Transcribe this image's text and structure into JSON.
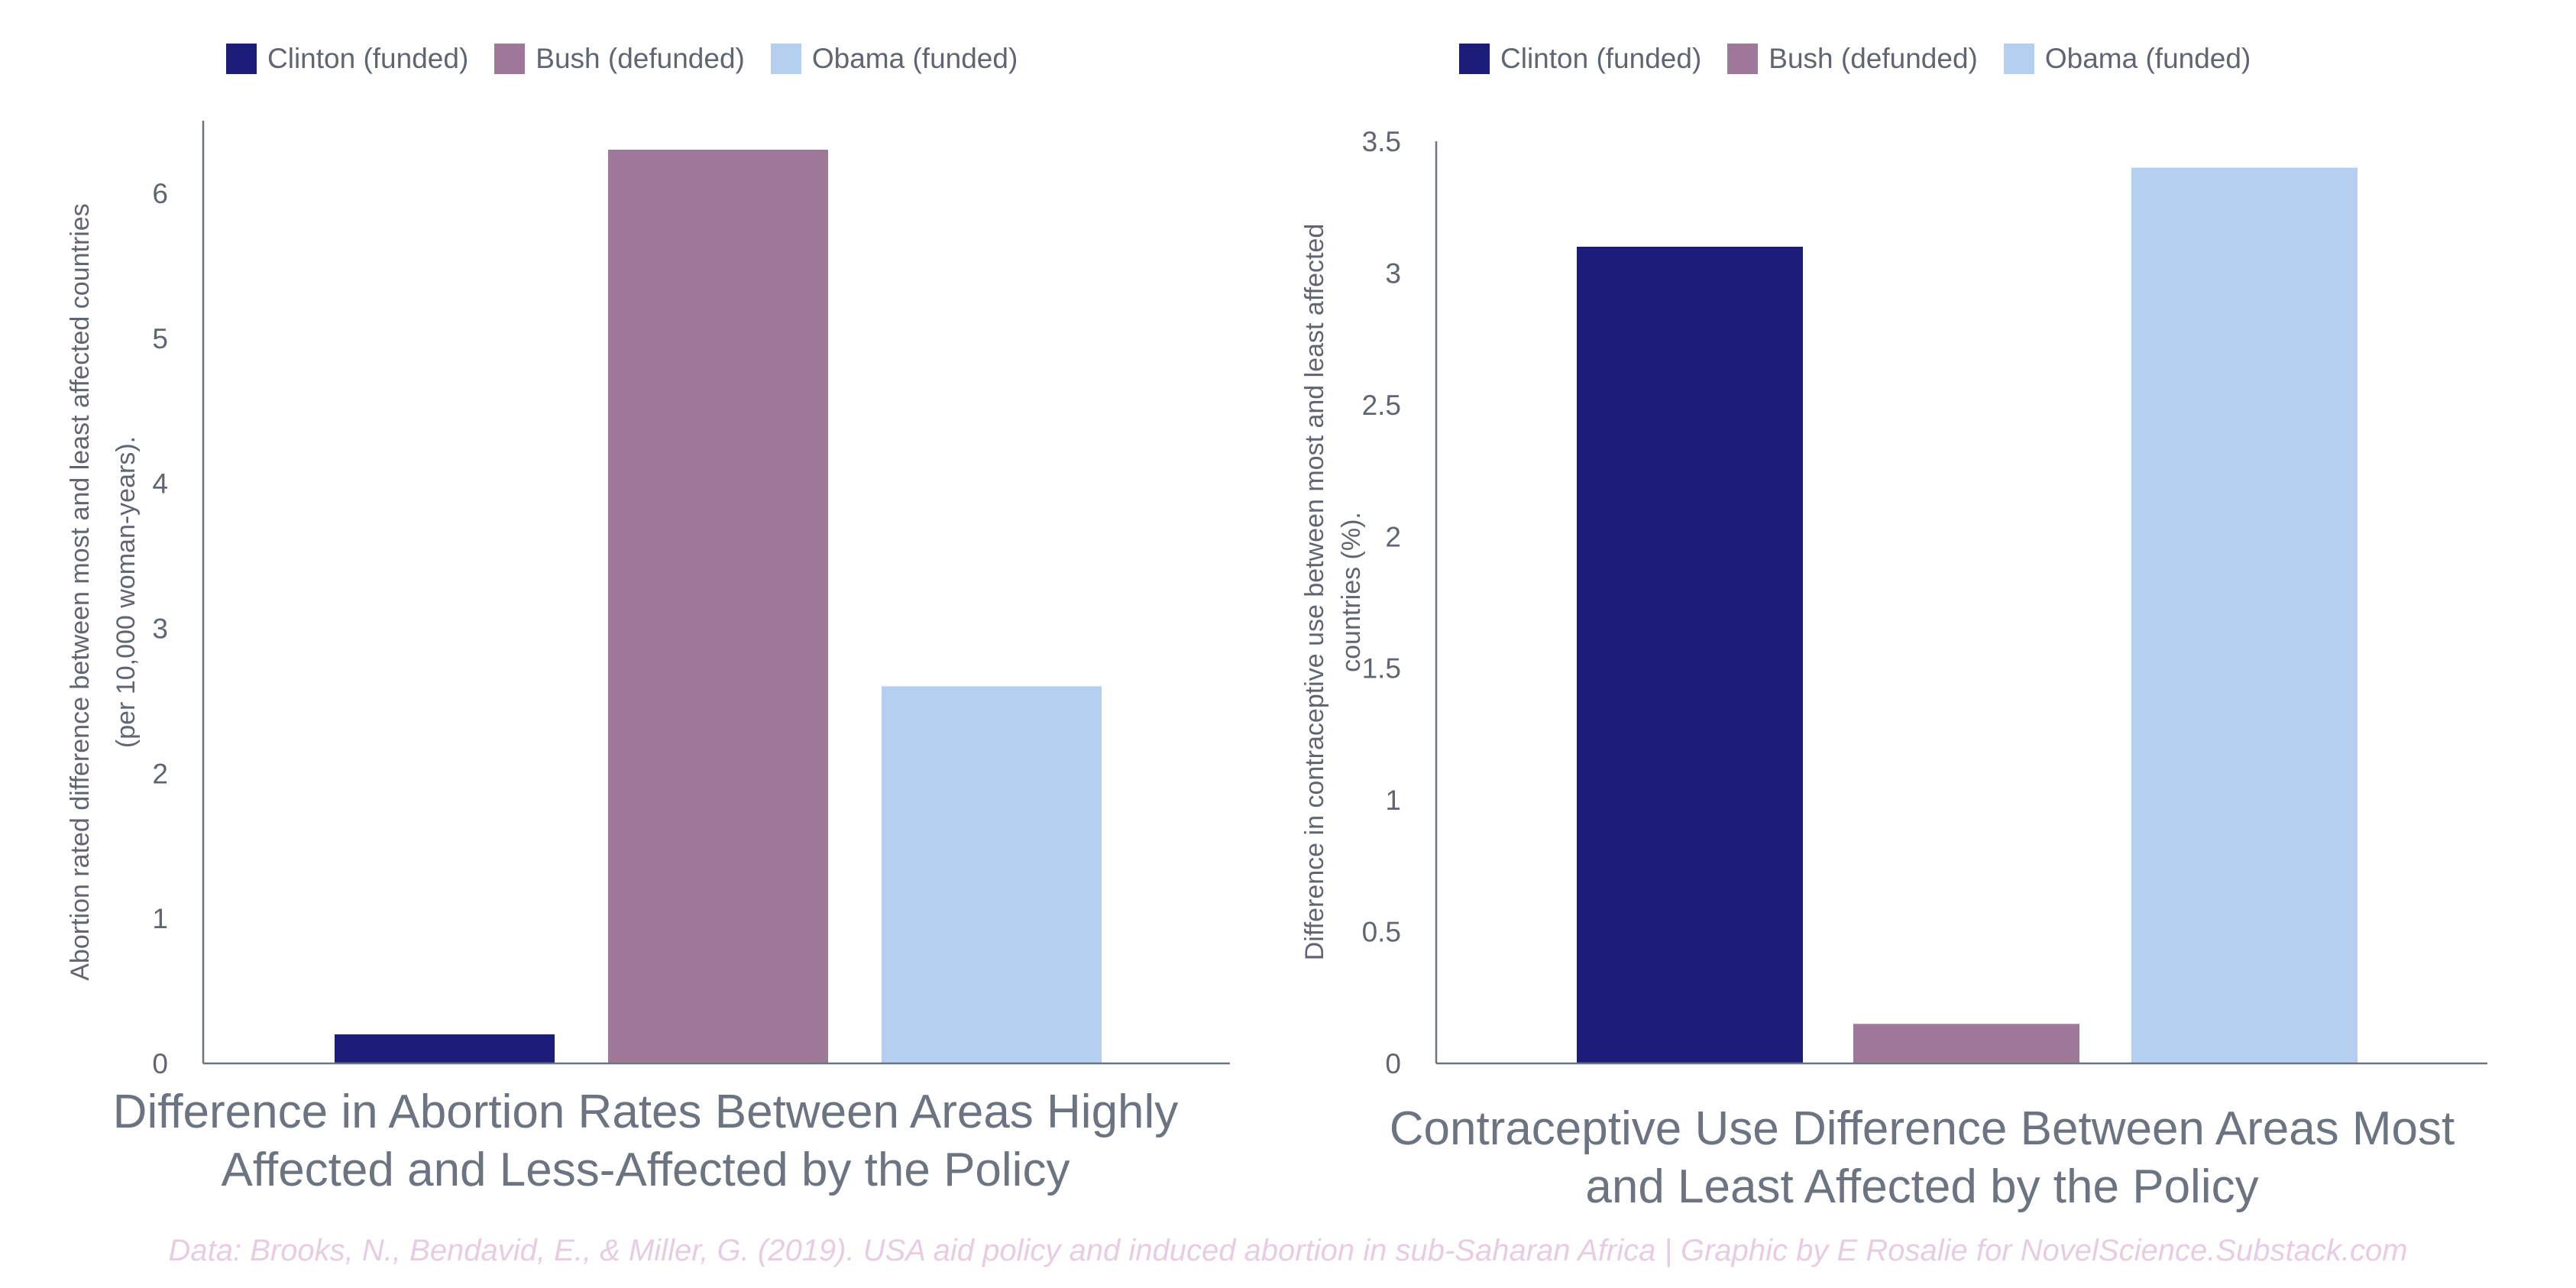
{
  "legend": {
    "colors": [
      "#1b1d78",
      "#9e7898",
      "#b4cfef"
    ]
  },
  "chart_data": [
    {
      "type": "bar",
      "title_line1": "Difference in Abortion Rates Between Areas Highly",
      "title_line2": "Affected and Less-Affected by the Policy",
      "ylabel_line1": "Abortion rated difference between most and least affected countries",
      "ylabel_line2": "(per 10,000 woman-years).",
      "categories": [
        "Clinton (funded)",
        "Bush (defunded)",
        "Obama (funded)"
      ],
      "values": [
        0.2,
        6.3,
        2.6
      ],
      "ylim": [
        0,
        6.5
      ],
      "yticks": [
        "0",
        "1",
        "2",
        "3",
        "4",
        "5",
        "6"
      ],
      "grid": false,
      "legend_position": "top"
    },
    {
      "type": "bar",
      "title_line1": "Contraceptive Use Difference Between Areas Most",
      "title_line2": "and Least Affected by the Policy",
      "ylabel_line1": "Difference in contraceptive use between most and least affected",
      "ylabel_line2": "countries (%).",
      "categories": [
        "Clinton (funded)",
        "Bush (defunded)",
        "Obama (funded)"
      ],
      "values": [
        3.1,
        0.15,
        3.4
      ],
      "ylim": [
        0,
        3.5
      ],
      "yticks": [
        "0",
        "0.5",
        "1",
        "1.5",
        "2",
        "2.5",
        "3",
        "3.5"
      ],
      "grid": false,
      "legend_position": "top"
    }
  ],
  "footer": "Data: Brooks, N., Bendavid, E., & Miller, G. (2019). USA aid policy and induced abortion in sub-Saharan Africa | Graphic by E Rosalie for NovelScience.Substack.com"
}
